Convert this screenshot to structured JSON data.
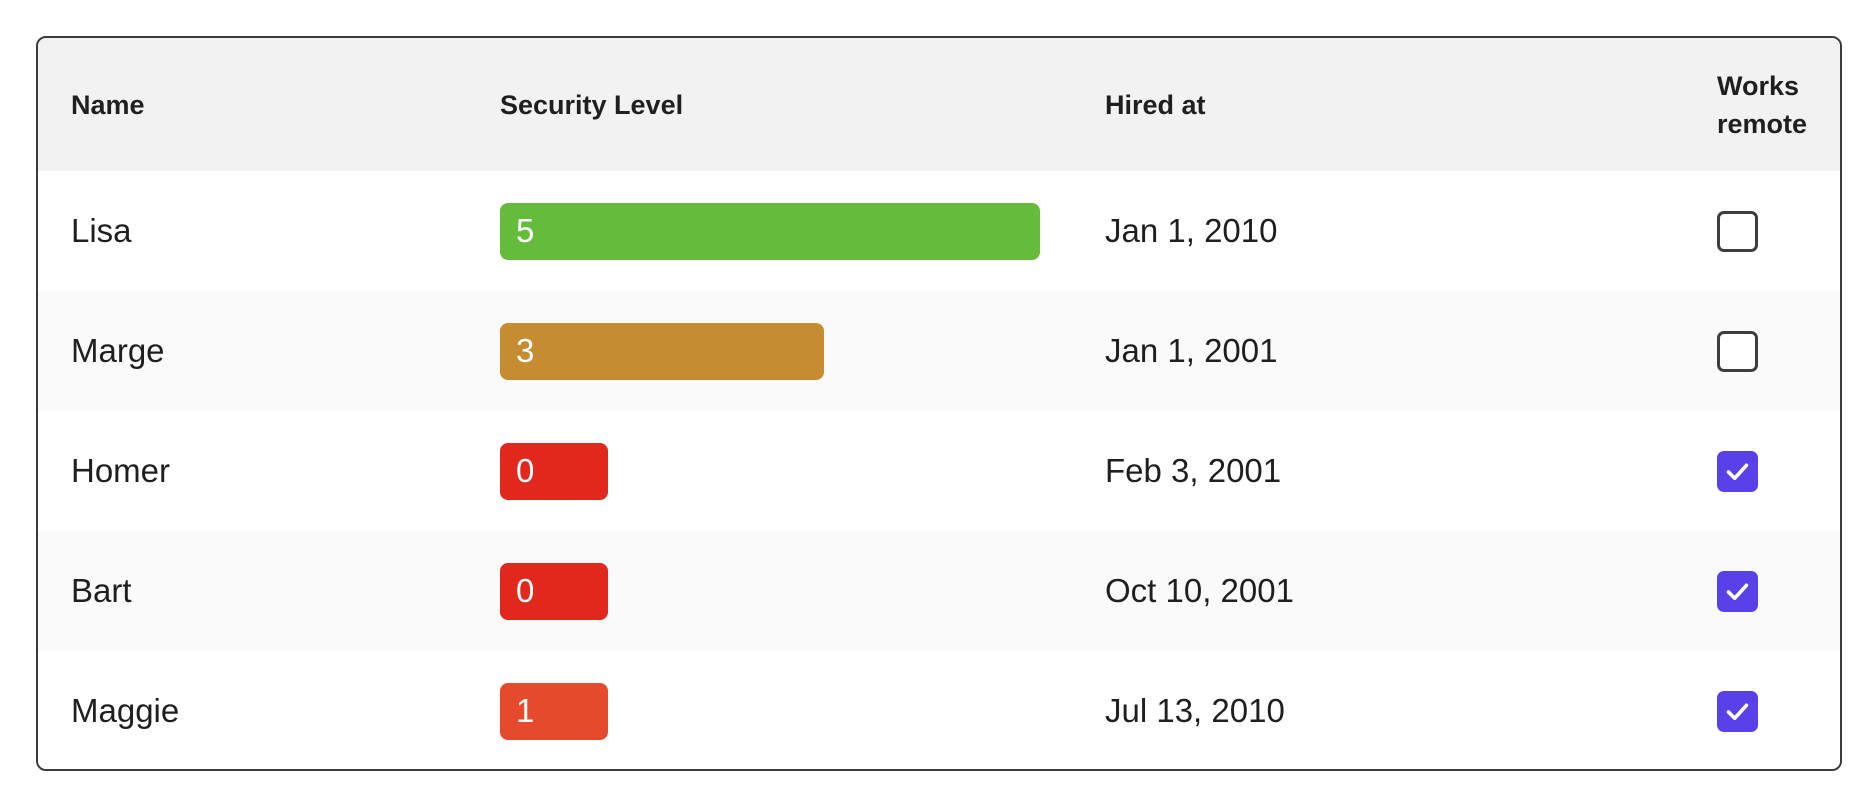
{
  "colors": {
    "card_border": "#3a3a3a",
    "header_bg": "#f2f2f2",
    "row_alt_bg": "#fafafa",
    "text": "#1f1f1f",
    "checkbox_checked": "#5841e8",
    "checkbox_border": "#3e3e3e",
    "level_green": "#65bb3c",
    "level_amber": "#c68c32",
    "level_red": "#e0281c",
    "level_orange_red": "#e64a2c"
  },
  "table": {
    "columns": [
      {
        "label": "Name"
      },
      {
        "label": "Security Level"
      },
      {
        "label": "Hired at"
      },
      {
        "label": "Works remote"
      }
    ],
    "rows": [
      {
        "name": "Lisa",
        "security_level": 5,
        "bar_color": "#65bb3c",
        "hired_at": "Jan 1, 2010",
        "works_remote": false
      },
      {
        "name": "Marge",
        "security_level": 3,
        "bar_color": "#c68c32",
        "hired_at": "Jan 1, 2001",
        "works_remote": false
      },
      {
        "name": "Homer",
        "security_level": 0,
        "bar_color": "#e0281c",
        "hired_at": "Feb 3, 2001",
        "works_remote": true
      },
      {
        "name": "Bart",
        "security_level": 0,
        "bar_color": "#e0281c",
        "hired_at": "Oct 10, 2001",
        "works_remote": true
      },
      {
        "name": "Maggie",
        "security_level": 1,
        "bar_color": "#e64a2c",
        "hired_at": "Jul 13, 2010",
        "works_remote": true
      }
    ]
  }
}
